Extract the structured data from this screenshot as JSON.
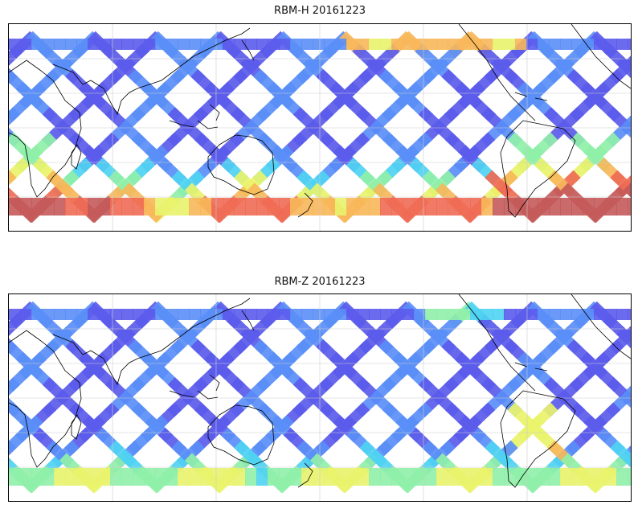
{
  "panels": [
    {
      "title": "RBM-H 20161223",
      "field": "rbm-h"
    },
    {
      "title": "RBM-Z 20161223",
      "field": "rbm-z"
    }
  ],
  "colors": {
    "colormap": [
      "#5b5bec",
      "#5a8ef7",
      "#4fd3f2",
      "#8ff0a8",
      "#e9f36b",
      "#f7b75a",
      "#ef6b55",
      "#c45a5a"
    ],
    "swath_base": "#6a6af2",
    "coast": "#000000",
    "grid": "#cccccc"
  }
}
